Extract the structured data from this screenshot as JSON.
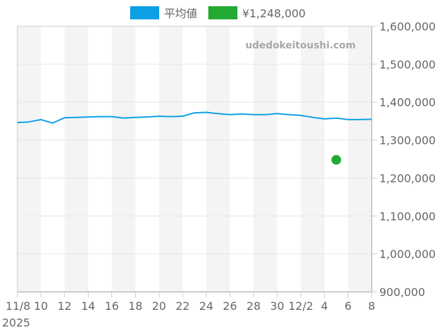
{
  "legend": {
    "items": [
      {
        "label": "平均値",
        "color": "#0ea0e6"
      },
      {
        "label": "¥1,248,000",
        "color": "#22aa33"
      }
    ]
  },
  "watermark": "udedokeitoushi.com",
  "y_axis": {
    "labels": [
      "1,600,000",
      "1,500,000",
      "1,400,000",
      "1,300,000",
      "1,200,000",
      "1,100,000",
      "1,000,000",
      "900,000"
    ]
  },
  "x_axis": {
    "labels": [
      "11/8",
      "10",
      "12",
      "14",
      "16",
      "18",
      "20",
      "22",
      "24",
      "26",
      "28",
      "30",
      "12/2",
      "4",
      "6",
      "8"
    ],
    "year_label": "2025"
  },
  "chart_data": {
    "type": "line",
    "title": "",
    "xlabel": "",
    "ylabel": "",
    "ylim": [
      900000,
      1600000
    ],
    "y_ticks": [
      900000,
      1000000,
      1100000,
      1200000,
      1300000,
      1400000,
      1500000,
      1600000
    ],
    "x_tick_labels": [
      "11/8",
      "10",
      "12",
      "14",
      "16",
      "18",
      "20",
      "22",
      "24",
      "26",
      "28",
      "30",
      "12/2",
      "4",
      "6",
      "8"
    ],
    "x_year_label": "2025",
    "grid": true,
    "legend_position": "top",
    "x": [
      "2025-11-08",
      "2025-11-09",
      "2025-11-10",
      "2025-11-11",
      "2025-11-12",
      "2025-11-13",
      "2025-11-14",
      "2025-11-15",
      "2025-11-16",
      "2025-11-17",
      "2025-11-18",
      "2025-11-19",
      "2025-11-20",
      "2025-11-21",
      "2025-11-22",
      "2025-11-23",
      "2025-11-24",
      "2025-11-25",
      "2025-11-26",
      "2025-11-27",
      "2025-11-28",
      "2025-11-29",
      "2025-11-30",
      "2025-12-01",
      "2025-12-02",
      "2025-12-03",
      "2025-12-04",
      "2025-12-05",
      "2025-12-06",
      "2025-12-07",
      "2025-12-08"
    ],
    "series": [
      {
        "name": "平均値",
        "type": "line",
        "color": "#0ea0e6",
        "values": [
          1346000,
          1348000,
          1354000,
          1345000,
          1359000,
          1360000,
          1361000,
          1362000,
          1362000,
          1358000,
          1360000,
          1361000,
          1363000,
          1362000,
          1363000,
          1372000,
          1373000,
          1370000,
          1367000,
          1369000,
          1367000,
          1367000,
          1370000,
          1367000,
          1365000,
          1360000,
          1356000,
          1358000,
          1354000,
          1354000,
          1355000
        ]
      },
      {
        "name": "¥1,248,000",
        "type": "scatter",
        "color": "#22aa33",
        "points": [
          {
            "x": "2025-12-05",
            "y": 1248000
          }
        ]
      }
    ]
  }
}
